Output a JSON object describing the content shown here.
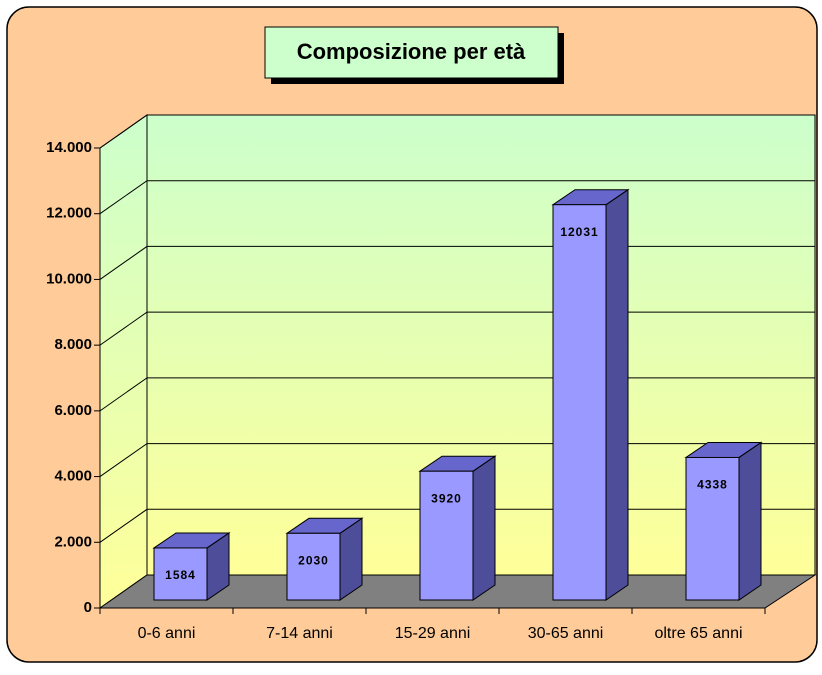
{
  "chart_data": {
    "type": "bar3d",
    "title": "Composizione per età",
    "categories": [
      "0-6 anni",
      "7-14 anni",
      "15-29 anni",
      "30-65 anni",
      "oltre 65 anni"
    ],
    "values": [
      1584,
      2030,
      3920,
      12031,
      4338
    ],
    "color": "#9999ff",
    "ylim": [
      0,
      14000
    ],
    "yticks": [
      0,
      {
        "value": 2000,
        "label": "2.000"
      },
      {
        "value": 4000,
        "label": "4.000"
      },
      {
        "value": 6000,
        "label": "6.000"
      },
      {
        "value": 8000,
        "label": "8.000"
      },
      {
        "value": 10000,
        "label": "10.000"
      },
      {
        "value": 12000,
        "label": "12.000"
      },
      {
        "value": 14000,
        "label": "14.000"
      }
    ],
    "grid": true
  }
}
